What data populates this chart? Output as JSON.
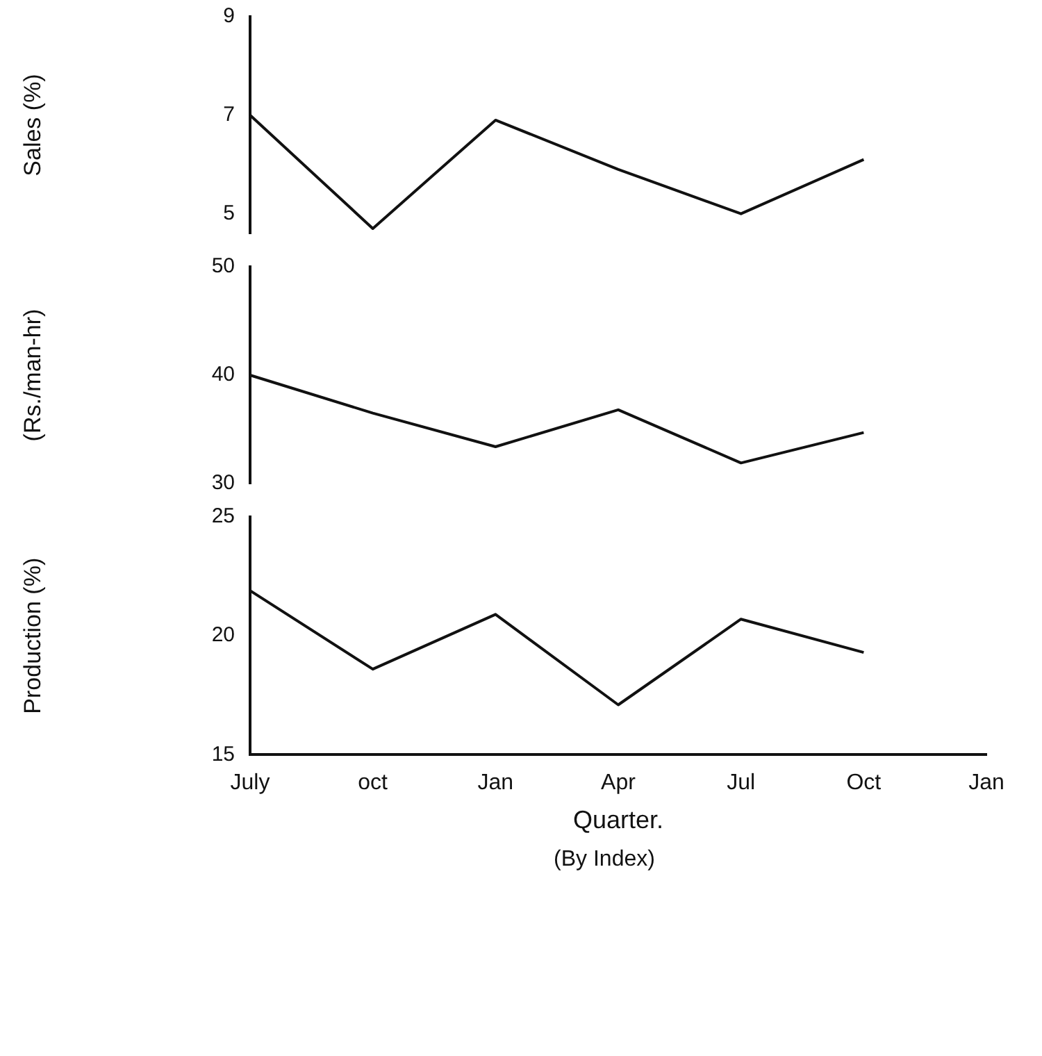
{
  "chart_data": [
    {
      "type": "line",
      "ylabel": "Sales (%)",
      "categories": [
        null,
        null,
        null,
        null,
        null,
        null,
        null
      ],
      "ylim": [
        4.6,
        9
      ],
      "yticks": [
        5,
        7,
        9
      ],
      "tick_labels": "y",
      "grid": false,
      "legend": false,
      "marker": "none",
      "series": [
        {
          "color": "#111111",
          "values": [
            7.0,
            4.7,
            6.9,
            5.9,
            5.0,
            6.1,
            null
          ]
        }
      ]
    },
    {
      "type": "line",
      "ylabel": "(Rs./man-hr)",
      "categories": [
        null,
        null,
        null,
        null,
        null,
        null,
        null
      ],
      "ylim": [
        30,
        50
      ],
      "yticks": [
        30,
        40,
        50
      ],
      "tick_labels": "y",
      "grid": false,
      "legend": false,
      "marker": "none",
      "series": [
        {
          "color": "#111111",
          "values": [
            40,
            36.5,
            33.4,
            36.8,
            31.9,
            34.7,
            null
          ]
        }
      ]
    },
    {
      "type": "line",
      "ylabel": "Production (%)",
      "xlabel": "Quarter.",
      "annotations": [
        "(By Index)"
      ],
      "categories": [
        "July",
        "oct",
        "Jan",
        "Apr",
        "Jul",
        "Oct",
        "Jan"
      ],
      "ylim": [
        15,
        25
      ],
      "yticks": [
        15,
        20,
        25
      ],
      "grid": false,
      "legend": false,
      "marker": "none",
      "series": [
        {
          "color": "#111111",
          "values": [
            21.9,
            18.6,
            20.9,
            17.1,
            20.7,
            19.3,
            null
          ]
        }
      ]
    }
  ]
}
